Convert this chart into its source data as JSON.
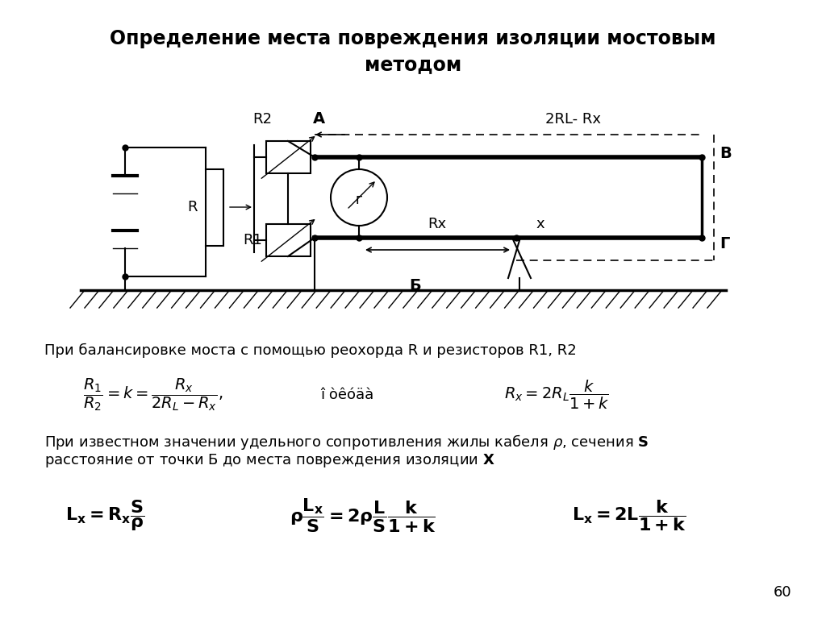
{
  "title_line1": "Определение места повреждения изоляции мостовым",
  "title_line2": "методом",
  "bg_color": "#ffffff",
  "text_color": "#000000",
  "title_fontsize": 17,
  "body_fontsize": 13,
  "page_num": "60",
  "label1": "При балансировке моста с помощью реохорда R и резисторов R1, R2",
  "label2a": "При известном значении удельного сопротивления жилы кабеля",
  "label2b": ", сечения",
  "label2c": "расстояние от точки Б до места повреждения изоляции",
  "label_rho": "ρ",
  "label_S": "S",
  "label_X": "X"
}
